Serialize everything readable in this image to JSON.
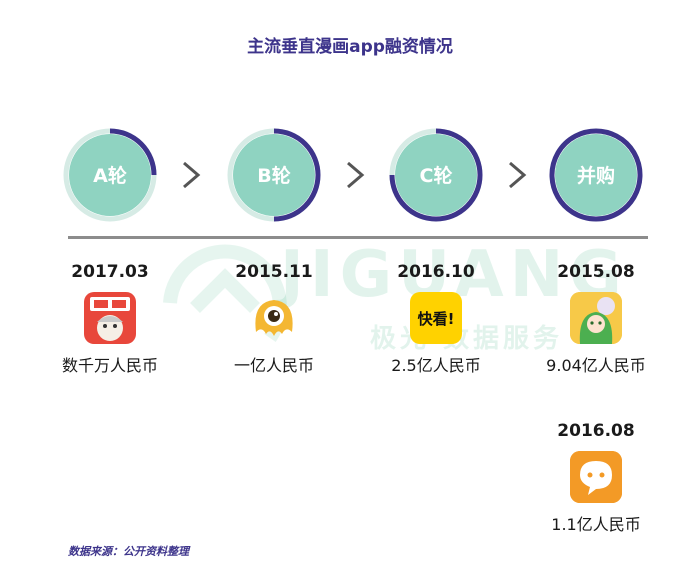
{
  "chart_data": {
    "type": "table",
    "title": "主流垂直漫画app融资情况",
    "stages": [
      {
        "label": "A轮",
        "progress": 0.25
      },
      {
        "label": "B轮",
        "progress": 0.5
      },
      {
        "label": "C轮",
        "progress": 0.75
      },
      {
        "label": "并购",
        "progress": 1.0
      }
    ],
    "deals": [
      {
        "stage": "A轮",
        "date": "2017.03",
        "amount": "数千万人民币",
        "icon": "manman-app-icon"
      },
      {
        "stage": "B轮",
        "date": "2015.11",
        "amount": "一亿人民币",
        "icon": "yellow-monster-app-icon"
      },
      {
        "stage": "C轮",
        "date": "2016.10",
        "amount": "2.5亿人民币",
        "icon": "kuaikan-app-icon",
        "icon_text": "快看!"
      },
      {
        "stage": "并购",
        "date": "2015.08",
        "amount": "9.04亿人民币",
        "icon": "anime-girl-app-icon"
      },
      {
        "stage": "并购",
        "date": "2016.08",
        "amount": "1.1亿人民币",
        "icon": "orange-chat-app-icon"
      }
    ],
    "source": "数据来源：公开资料整理"
  },
  "watermark": {
    "latin": "JIGUANG",
    "chinese": "极光 数据服务"
  },
  "colors": {
    "stage_fill": "#8fd3c1",
    "stage_ring_track": "#d6ebe5",
    "stage_ring": "#3d348b",
    "title": "#3d348b",
    "divider": "#8c8c8c"
  }
}
